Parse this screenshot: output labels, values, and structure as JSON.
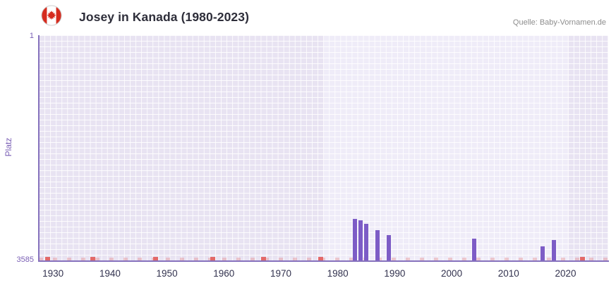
{
  "header": {
    "title": "Josey in Kanada (1980-2023)",
    "source": "Quelle: Baby-Vornamen.de",
    "flag_icon": "canada-flag-icon"
  },
  "chart_data": {
    "type": "bar",
    "title": "Josey in Kanada (1980-2023)",
    "ylabel": "Platz",
    "y_axis": {
      "top_label": "1",
      "bottom_label": "3585",
      "min": 1,
      "max": 3585,
      "inverted": true
    },
    "x_axis": {
      "ticks": [
        "1930",
        "1940",
        "1950",
        "1960",
        "1970",
        "1980",
        "1990",
        "2000",
        "2010",
        "2020"
      ],
      "range": [
        1927.5,
        2027.5
      ]
    },
    "bars": [
      {
        "year": 1983,
        "rank": 2920
      },
      {
        "year": 1984,
        "rank": 2950
      },
      {
        "year": 1985,
        "rank": 3000
      },
      {
        "year": 1987,
        "rank": 3100
      },
      {
        "year": 1989,
        "rank": 3180
      },
      {
        "year": 2004,
        "rank": 3240
      },
      {
        "year": 2016,
        "rank": 3360
      },
      {
        "year": 2018,
        "rank": 3260
      }
    ],
    "no_data_markers": [
      {
        "year": 1929
      },
      {
        "year": 1937
      },
      {
        "year": 1948
      },
      {
        "year": 1958
      },
      {
        "year": 1967
      },
      {
        "year": 1977
      },
      {
        "year": 2023
      }
    ],
    "bands": [
      {
        "from": 1977.5,
        "to": 2020.5
      }
    ],
    "colors": {
      "bar": "#7d5cc6",
      "no_data": "#e26868",
      "plot_bg": "#e8e3f2",
      "band_bg": "#efecf8",
      "grid": "#ffffff",
      "axis": "#8672bd",
      "y_text": "#7a5fb5",
      "x_text": "#32324e"
    },
    "legend": "off",
    "grid_on": true
  }
}
